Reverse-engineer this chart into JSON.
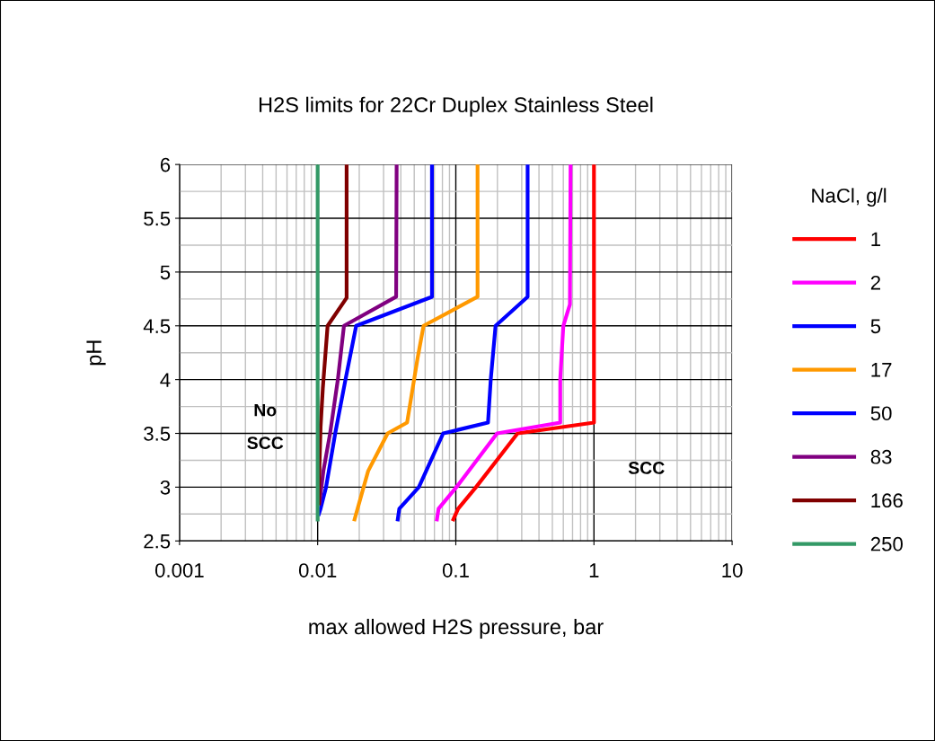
{
  "chart_data": {
    "type": "line",
    "title": "H2S limits for 22Cr Duplex Stainless Steel",
    "xlabel": "max allowed H2S pressure, bar",
    "ylabel": "pH",
    "legend_title": "NaCl, g/l",
    "log": "x",
    "xlim": [
      0.001,
      10
    ],
    "xticks": [
      0.001,
      0.01,
      0.1,
      1,
      10
    ],
    "ylim": [
      2.5,
      6
    ],
    "yticks": [
      2.5,
      3,
      3.5,
      4,
      4.5,
      5,
      5.5,
      6
    ],
    "grid": true,
    "legend": "right",
    "marker": "none",
    "line_style": "solid",
    "annotations": [
      "No\nSCC",
      "SCC"
    ],
    "series": [
      {
        "name": "1",
        "color": "#ff0000",
        "x": [
          1.0,
          1.0,
          0.28,
          0.198,
          0.14,
          0.104,
          0.096
        ],
        "values": [
          6,
          3.6,
          3.5,
          3.25,
          3.0,
          2.8,
          2.7
        ]
      },
      {
        "name": "2",
        "color": "#ff00ff",
        "x": [
          0.677,
          0.67,
          0.6,
          0.57,
          0.57,
          0.199,
          0.101,
          0.075,
          0.073
        ],
        "values": [
          6,
          4.7,
          4.5,
          4.0,
          3.6,
          3.5,
          3.0,
          2.8,
          2.7
        ]
      },
      {
        "name": "5",
        "color": "#0000ff",
        "x": [
          0.331,
          0.331,
          0.194,
          0.179,
          0.171,
          0.081,
          0.054,
          0.039,
          0.038
        ],
        "values": [
          6,
          4.77,
          4.5,
          4.0,
          3.6,
          3.5,
          3.0,
          2.8,
          2.7
        ]
      },
      {
        "name": "17",
        "color": "#ff9900",
        "x": [
          0.1437,
          0.1437,
          0.0584,
          0.0529,
          0.0444,
          0.0321,
          0.0232,
          0.0185
        ],
        "values": [
          6,
          4.77,
          4.5,
          4.2,
          3.6,
          3.5,
          3.15,
          2.7
        ]
      },
      {
        "name": "50",
        "color": "#0000ff",
        "x": [
          0.0672,
          0.0672,
          0.019,
          0.0159,
          0.0134,
          0.0115,
          0.0105,
          0.0102
        ],
        "values": [
          6,
          4.77,
          4.5,
          4.0,
          3.5,
          3.0,
          2.8,
          2.75
        ]
      },
      {
        "name": "83",
        "color": "#800080",
        "x": [
          0.0373,
          0.037,
          0.0155,
          0.014,
          0.0123,
          0.011,
          0.0103
        ],
        "values": [
          6,
          4.77,
          4.5,
          4.0,
          3.5,
          3.15,
          2.85
        ]
      },
      {
        "name": "166",
        "color": "#800000",
        "x": [
          0.0162,
          0.0162,
          0.0118,
          0.0109,
          0.0105,
          0.0103,
          0.0102
        ],
        "values": [
          6,
          4.76,
          4.5,
          3.92,
          3.56,
          3.2,
          2.85
        ]
      },
      {
        "name": "250",
        "color": "#339966",
        "x": [
          0.01,
          0.01
        ],
        "values": [
          6,
          2.7
        ]
      }
    ]
  }
}
